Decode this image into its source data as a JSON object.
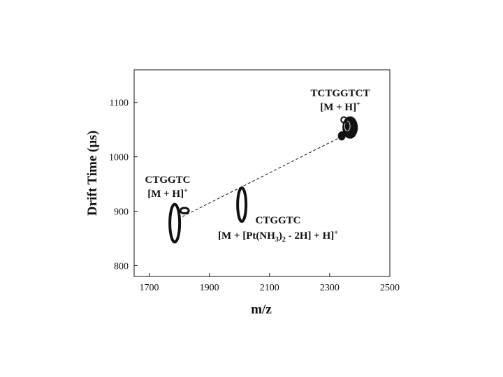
{
  "chart_data": {
    "type": "scatter",
    "xlabel": "m/z",
    "ylabel": "Drift Time (µs)",
    "xlim": [
      1650,
      2500
    ],
    "ylim": [
      780,
      1160
    ],
    "x_ticks": [
      1700,
      1900,
      2100,
      2300,
      2500
    ],
    "y_ticks": [
      800,
      900,
      1000,
      1100
    ],
    "grid": false,
    "series": [
      {
        "points": [
          {
            "x": 1785,
            "y": 878
          },
          {
            "x": 2008,
            "y": 912
          },
          {
            "x": 2368,
            "y": 1050
          }
        ]
      }
    ],
    "trendline": {
      "style": "dashed",
      "from": {
        "x": 1810,
        "y": 890
      },
      "to": {
        "x": 2350,
        "y": 1040
      }
    },
    "annotations": [
      {
        "lines": [
          "CTGGTC",
          "[M + H]+"
        ],
        "x": 1780,
        "y": 950
      },
      {
        "lines": [
          "CTGGTC",
          "[M + [Pt(NH3)2  - 2H] + H]+"
        ],
        "x": 2100,
        "y": 890
      },
      {
        "lines": [
          "TCTGGTCT",
          "[M + H]+"
        ],
        "x": 2340,
        "y": 1115
      }
    ]
  }
}
